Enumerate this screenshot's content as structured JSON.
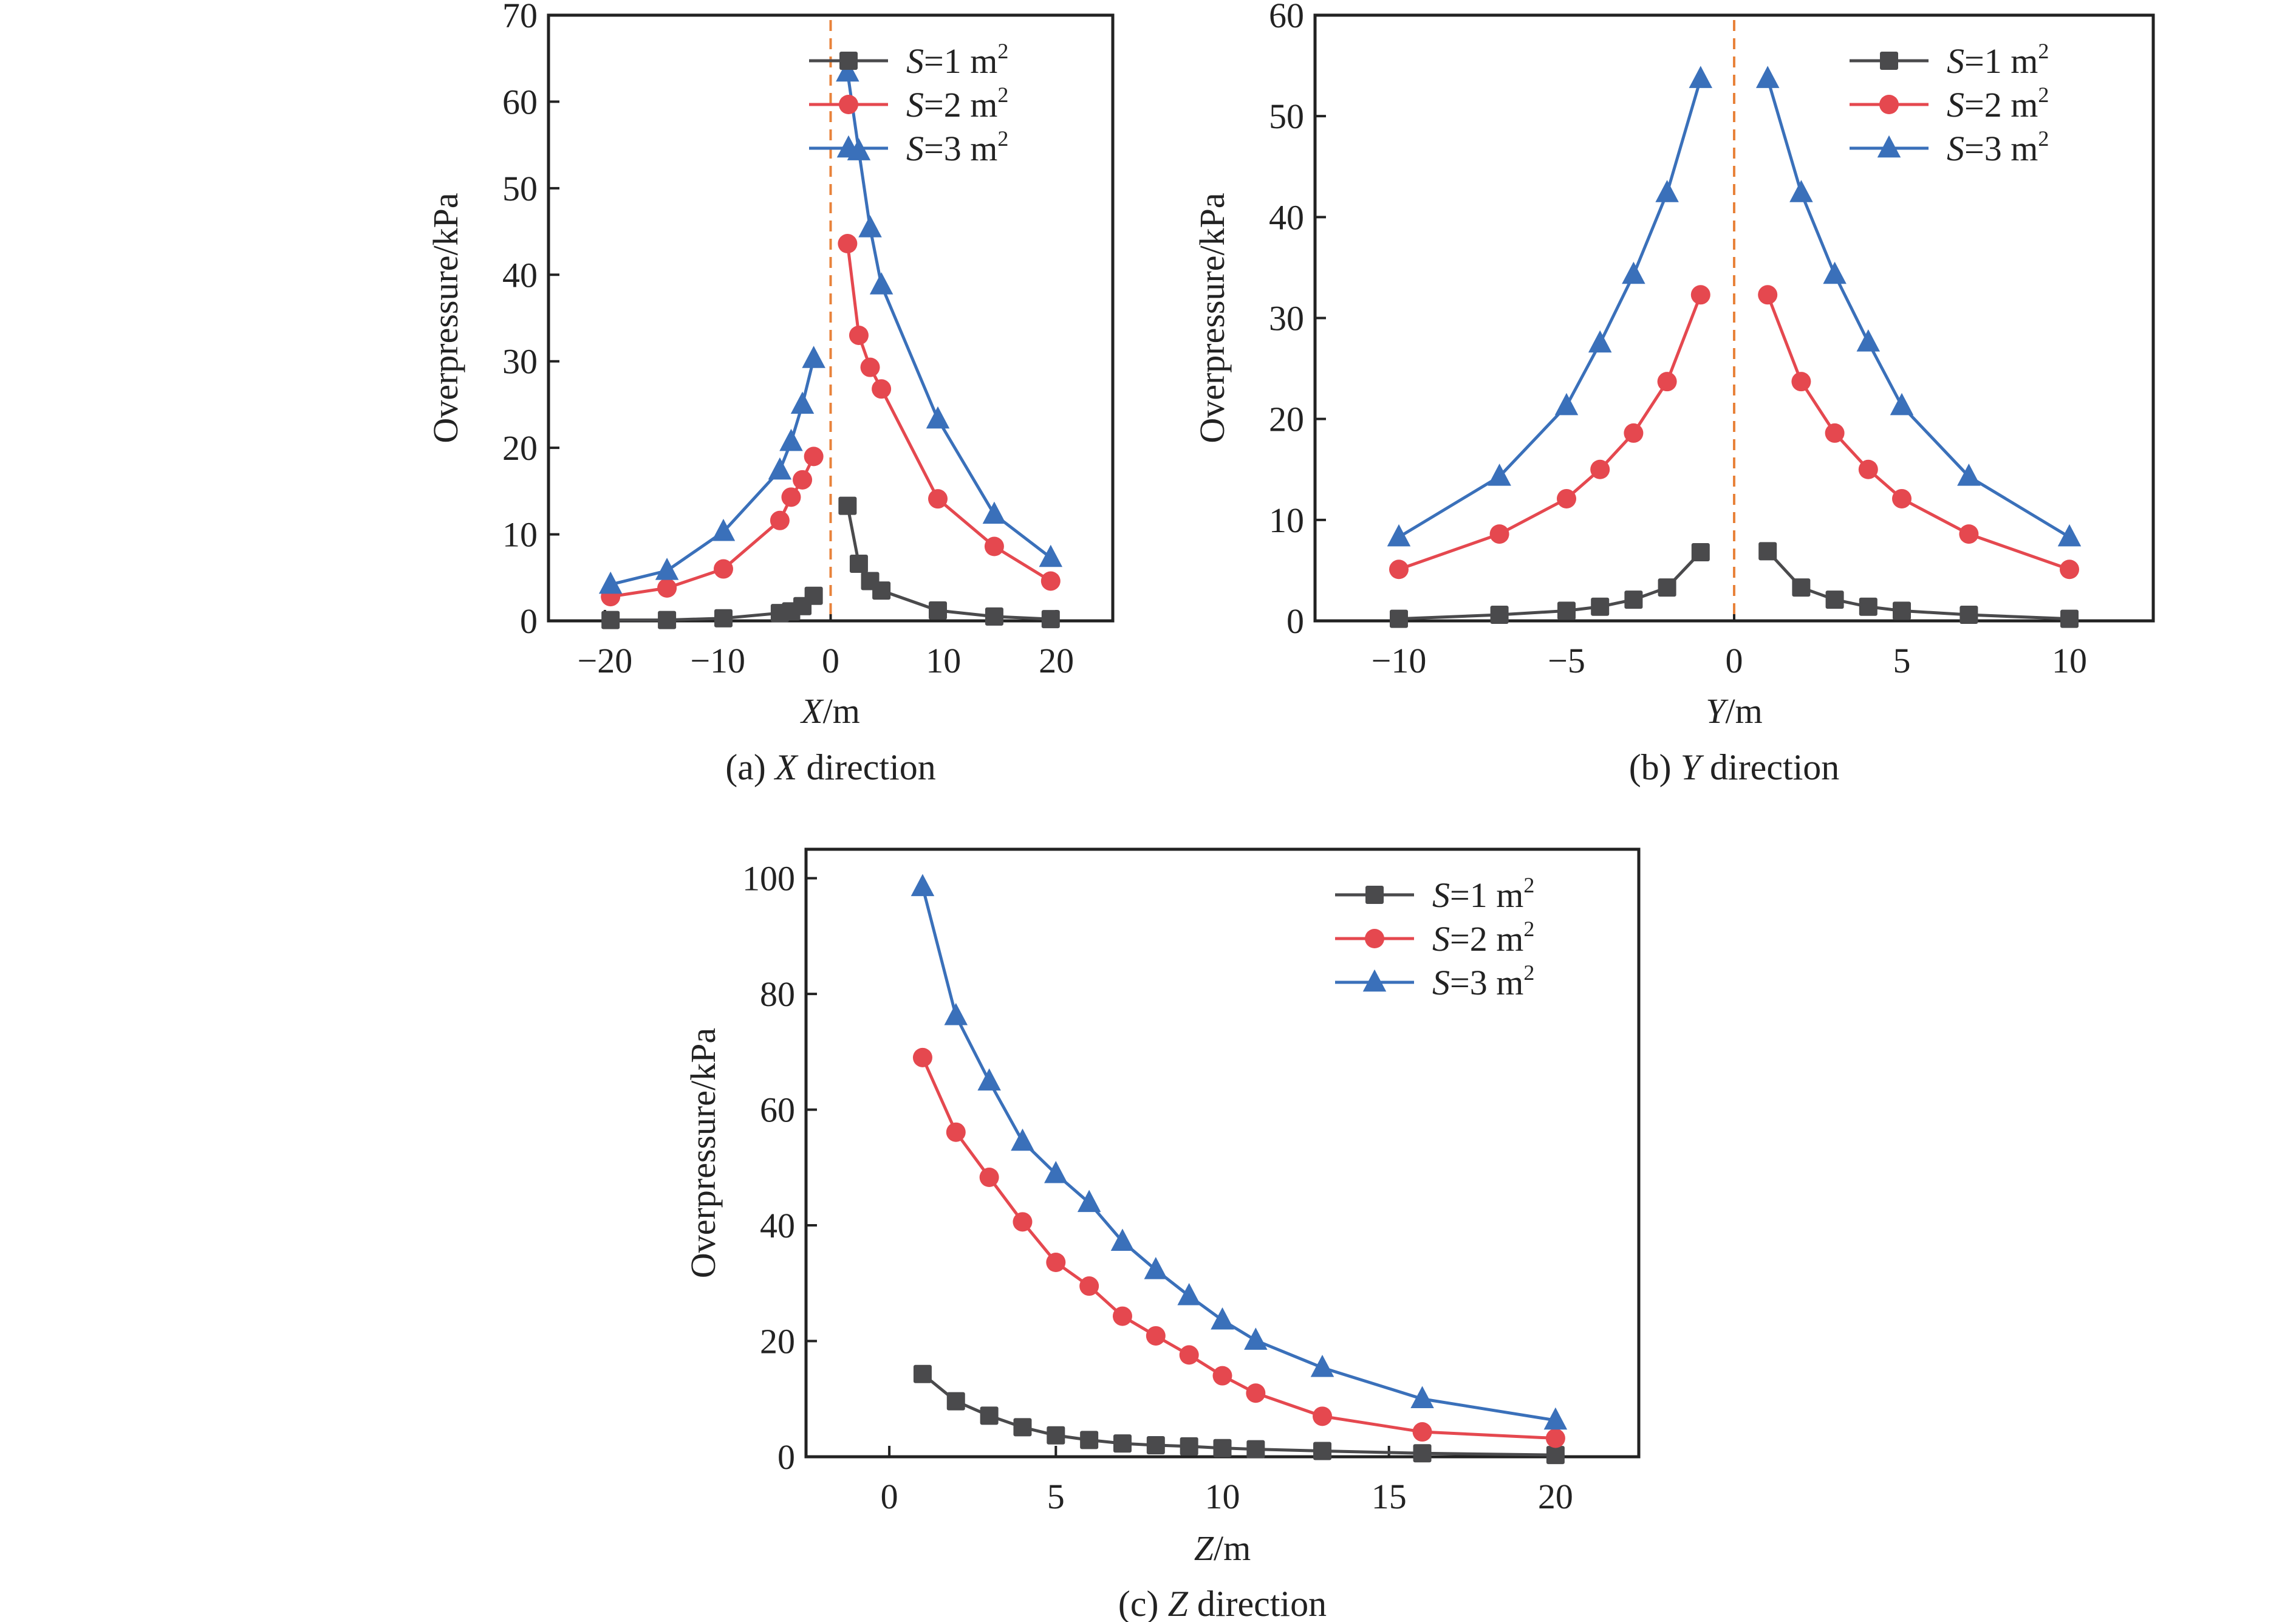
{
  "colors": {
    "s1": "#4a4a4c",
    "s2": "#e5484f",
    "s3": "#3a70ba",
    "refline": "#e8823a",
    "axis": "#222222"
  },
  "chart_data": [
    {
      "id": "a",
      "type": "line",
      "caption_prefix": "(a) ",
      "caption_var": "X",
      "caption_suffix": " direction",
      "xlabel_var": "X",
      "xlabel_unit": "/m",
      "ylabel": "Overpressure/kPa",
      "xlim": [
        -25,
        25
      ],
      "ylim": [
        0,
        70
      ],
      "xticks": [
        -20,
        -10,
        0,
        10,
        20
      ],
      "xtick_labels": [
        "−20",
        "−10",
        "0",
        "10",
        "20"
      ],
      "yticks": [
        0,
        10,
        20,
        30,
        40,
        50,
        60,
        70
      ],
      "ytick_labels": [
        "0",
        "10",
        "20",
        "30",
        "40",
        "50",
        "60",
        "70"
      ],
      "vline_x": 0,
      "legend_position": "top-right",
      "split_at_zero": true,
      "x": [
        -19.5,
        -14.5,
        -9.5,
        -4.5,
        -3.5,
        -2.5,
        -1.5,
        1.5,
        2.5,
        3.5,
        4.5,
        9.5,
        14.5,
        19.5
      ],
      "series": [
        {
          "name": "S=1 m2",
          "label_var": "S",
          "label_rest": "=1 m",
          "label_sup": "2",
          "marker": "square",
          "color_key": "s1",
          "values": [
            0.1,
            0.1,
            0.3,
            0.9,
            1.1,
            1.7,
            2.9,
            13.3,
            6.6,
            4.6,
            3.5,
            1.2,
            0.5,
            0.2
          ]
        },
        {
          "name": "S=2 m2",
          "label_var": "S",
          "label_rest": "=2 m",
          "label_sup": "2",
          "marker": "circle",
          "color_key": "s2",
          "values": [
            2.8,
            3.8,
            6.0,
            11.6,
            14.3,
            16.3,
            19.0,
            43.6,
            33.0,
            29.3,
            26.8,
            14.1,
            8.6,
            4.6
          ]
        },
        {
          "name": "S=3 m2",
          "label_var": "S",
          "label_rest": "=3 m",
          "label_sup": "2",
          "marker": "triangle",
          "color_key": "s3",
          "values": [
            4.2,
            5.8,
            10.3,
            17.4,
            20.7,
            25.0,
            30.3,
            63.4,
            54.3,
            45.4,
            38.8,
            23.3,
            12.3,
            7.3
          ]
        }
      ]
    },
    {
      "id": "b",
      "type": "line",
      "caption_prefix": "(b) ",
      "caption_var": "Y",
      "caption_suffix": " direction",
      "xlabel_var": "Y",
      "xlabel_unit": "/m",
      "ylabel": "Overpressure/kPa",
      "xlim": [
        -12.5,
        12.5
      ],
      "ylim": [
        0,
        60
      ],
      "xticks": [
        -10,
        -5,
        0,
        5,
        10
      ],
      "xtick_labels": [
        "−10",
        "−5",
        "0",
        "5",
        "10"
      ],
      "yticks": [
        0,
        10,
        20,
        30,
        40,
        50,
        60
      ],
      "ytick_labels": [
        "0",
        "10",
        "20",
        "30",
        "40",
        "50",
        "60"
      ],
      "vline_x": 0,
      "legend_position": "top-right",
      "split_at_zero": true,
      "x": [
        -10,
        -7,
        -5,
        -4,
        -3,
        -2,
        -1,
        1,
        2,
        3,
        4,
        5,
        7,
        10
      ],
      "series": [
        {
          "name": "S=1 m2",
          "label_var": "S",
          "label_rest": "=1 m",
          "label_sup": "2",
          "marker": "square",
          "color_key": "s1",
          "values": [
            0.2,
            0.6,
            1.0,
            1.4,
            2.1,
            3.3,
            6.8,
            6.9,
            3.3,
            2.1,
            1.4,
            1.0,
            0.6,
            0.2
          ]
        },
        {
          "name": "S=2 m2",
          "label_var": "S",
          "label_rest": "=2 m",
          "label_sup": "2",
          "marker": "circle",
          "color_key": "s2",
          "values": [
            5.1,
            8.6,
            12.1,
            15.0,
            18.6,
            23.7,
            32.3,
            32.3,
            23.7,
            18.6,
            15.0,
            12.1,
            8.6,
            5.1
          ]
        },
        {
          "name": "S=3 m2",
          "label_var": "S",
          "label_rest": "=3 m",
          "label_sup": "2",
          "marker": "triangle",
          "color_key": "s3",
          "values": [
            8.3,
            14.3,
            21.3,
            27.5,
            34.3,
            42.4,
            53.7,
            53.7,
            42.4,
            34.3,
            27.6,
            21.3,
            14.3,
            8.3
          ]
        }
      ]
    },
    {
      "id": "c",
      "type": "line",
      "caption_prefix": "(c) ",
      "caption_var": "Z",
      "caption_suffix": " direction",
      "xlabel_var": "Z",
      "xlabel_unit": "/m",
      "ylabel": "Overpressure/kPa",
      "xlim": [
        -2.5,
        22.5
      ],
      "ylim": [
        0,
        105
      ],
      "xticks": [
        0,
        5,
        10,
        15,
        20
      ],
      "xtick_labels": [
        "0",
        "5",
        "10",
        "15",
        "20"
      ],
      "yticks": [
        0,
        20,
        40,
        60,
        80,
        100
      ],
      "ytick_labels": [
        "0",
        "20",
        "40",
        "60",
        "80",
        "100"
      ],
      "vline_x": null,
      "legend_position": "top-right",
      "split_at_zero": false,
      "x": [
        1,
        2,
        3,
        4,
        5,
        6,
        7,
        8,
        9,
        10,
        11,
        13,
        16,
        20
      ],
      "series": [
        {
          "name": "S=1 m2",
          "label_var": "S",
          "label_rest": "=1 m",
          "label_sup": "2",
          "marker": "square",
          "color_key": "s1",
          "values": [
            14.3,
            9.6,
            7.1,
            5.1,
            3.7,
            2.9,
            2.3,
            2.0,
            1.8,
            1.5,
            1.3,
            1.0,
            0.6,
            0.3
          ]
        },
        {
          "name": "S=2 m2",
          "label_var": "S",
          "label_rest": "=2 m",
          "label_sup": "2",
          "marker": "circle",
          "color_key": "s2",
          "values": [
            69.0,
            56.1,
            48.3,
            40.6,
            33.6,
            29.5,
            24.3,
            20.9,
            17.6,
            14.0,
            11.0,
            7.0,
            4.3,
            3.2
          ]
        },
        {
          "name": "S=3 m2",
          "label_var": "S",
          "label_rest": "=3 m",
          "label_sup": "2",
          "marker": "triangle",
          "color_key": "s3",
          "values": [
            98.5,
            76.2,
            64.9,
            54.5,
            48.9,
            43.9,
            37.2,
            32.3,
            27.8,
            23.6,
            20.1,
            15.4,
            10.0,
            6.3
          ]
        }
      ]
    }
  ]
}
